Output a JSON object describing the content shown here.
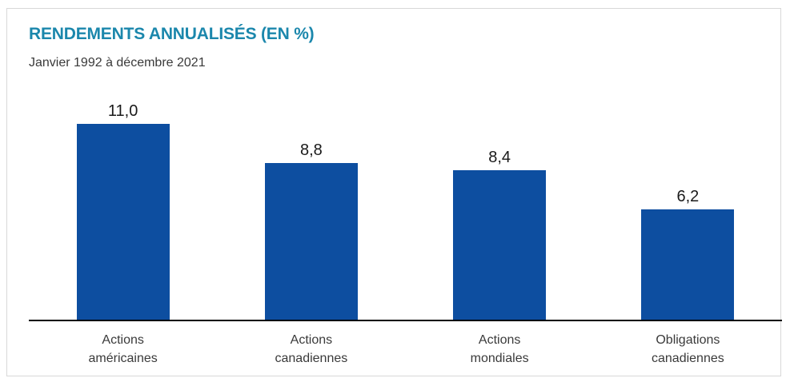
{
  "card": {
    "border_color": "#d8d8d8",
    "background": "#ffffff"
  },
  "chart_data": {
    "type": "bar",
    "title": "RENDEMENTS ANNUALISÉS (EN %)",
    "subtitle": "Janvier 1992 à décembre 2021",
    "categories": [
      "Actions américaines",
      "Actions canadiennes",
      "Actions mondiales",
      "Obligations canadiennes"
    ],
    "category_label_lines": [
      [
        "Actions",
        "américaines"
      ],
      [
        "Actions",
        "canadiennes"
      ],
      [
        "Actions",
        "mondiales"
      ],
      [
        "Obligations",
        "canadiennes"
      ]
    ],
    "values": [
      11.0,
      8.8,
      8.4,
      6.2
    ],
    "value_labels": [
      "11,0",
      "8,8",
      "8,4",
      "6,2"
    ],
    "xlabel": "",
    "ylabel": "",
    "ylim": [
      0,
      11.8
    ],
    "grid": false,
    "y_axis_visible": false,
    "baseline_axis_visible": true,
    "value_labels_position": "above-bars",
    "legend": "none",
    "colors": {
      "bar": "#0d4ea0",
      "title": "#1b87ac",
      "subtitle_text": "#3a3a3a",
      "value_text": "#1a1a1a",
      "axis": "#000000"
    }
  }
}
